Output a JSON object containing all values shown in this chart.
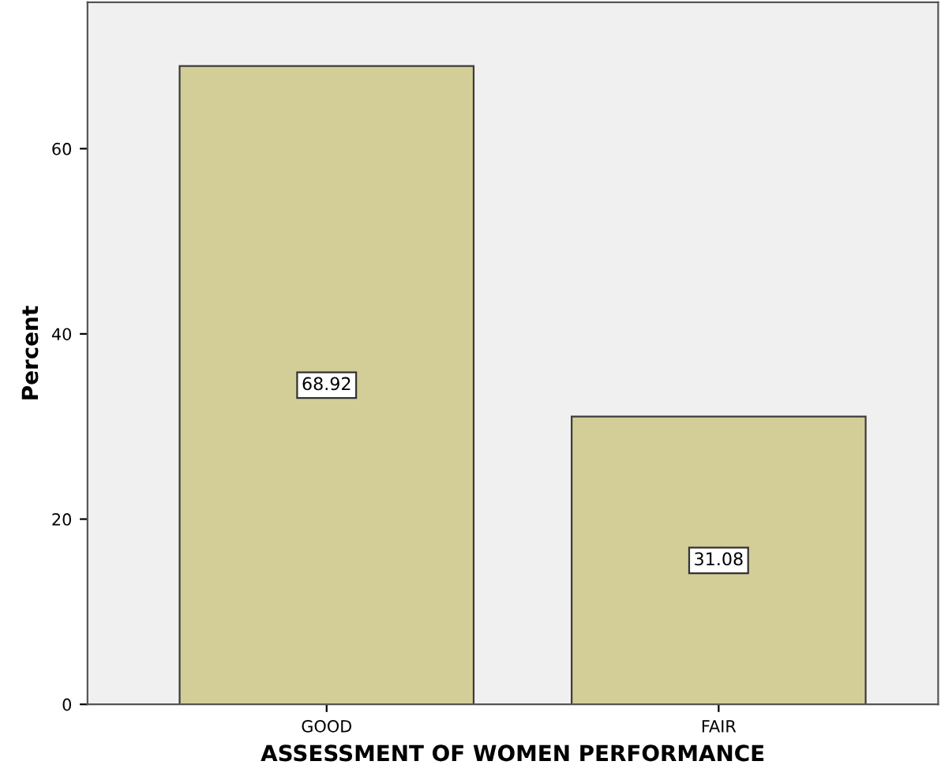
{
  "chart_data": {
    "type": "bar",
    "xlabel": "ASSESSMENT OF WOMEN PERFORMANCE",
    "ylabel": "Percent",
    "categories": [
      "GOOD",
      "FAIR"
    ],
    "values": [
      68.92,
      31.08
    ],
    "color": "#d3ce97",
    "ylim": [
      0,
      75.8
    ],
    "yticks": [
      0,
      20,
      40,
      60
    ],
    "grid": false,
    "data_labels": true
  }
}
